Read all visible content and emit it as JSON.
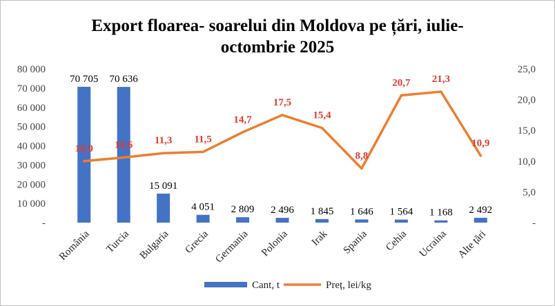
{
  "colors": {
    "bar": "#4472C4",
    "line": "#ED7D31",
    "line_label": "#E03A2E",
    "frame": "#BFBFBF"
  },
  "chart_data": {
    "type": "bar",
    "title_line1": "Export floarea- soarelui din Moldova pe țări, iulie-",
    "title_line2": "octombrie 2025",
    "categories": [
      "România",
      "Turcia",
      "Bulgaria",
      "Grecia",
      "Germania",
      "Polonia",
      "Irak",
      "Spania",
      "Cehia",
      "Ucraina",
      "Alte țări"
    ],
    "series": [
      {
        "name": "Cant, t",
        "type": "bar",
        "axis": "left",
        "values": [
          70705,
          70636,
          15091,
          4051,
          2809,
          2496,
          1845,
          1646,
          1564,
          1168,
          2492
        ],
        "labels": [
          "70 705",
          "70 636",
          "15 091",
          "4 051",
          "2 809",
          "2 496",
          "1 845",
          "1 646",
          "1 564",
          "1 168",
          "2 492"
        ]
      },
      {
        "name": "Preț, lei/kg",
        "type": "line",
        "axis": "right",
        "values": [
          10.0,
          10.6,
          11.3,
          11.5,
          14.7,
          17.5,
          15.4,
          8.8,
          20.7,
          21.3,
          10.9
        ],
        "labels": [
          "10,0",
          "10,6",
          "11,3",
          "11,5",
          "14,7",
          "17,5",
          "15,4",
          "8,8",
          "20,7",
          "21,3",
          "10,9"
        ]
      }
    ],
    "y_left": {
      "min": 0,
      "max": 80000,
      "step": 10000,
      "tick_labels": [
        "-",
        "10 000",
        "20 000",
        "30 000",
        "40 000",
        "50 000",
        "60 000",
        "70 000",
        "80 000"
      ]
    },
    "y_right": {
      "min": 0,
      "max": 25,
      "step": 5,
      "tick_labels": [
        "-",
        "5,0",
        "10,0",
        "15,0",
        "20,0",
        "25,0"
      ]
    },
    "grid": false,
    "legend_position": "bottom"
  }
}
